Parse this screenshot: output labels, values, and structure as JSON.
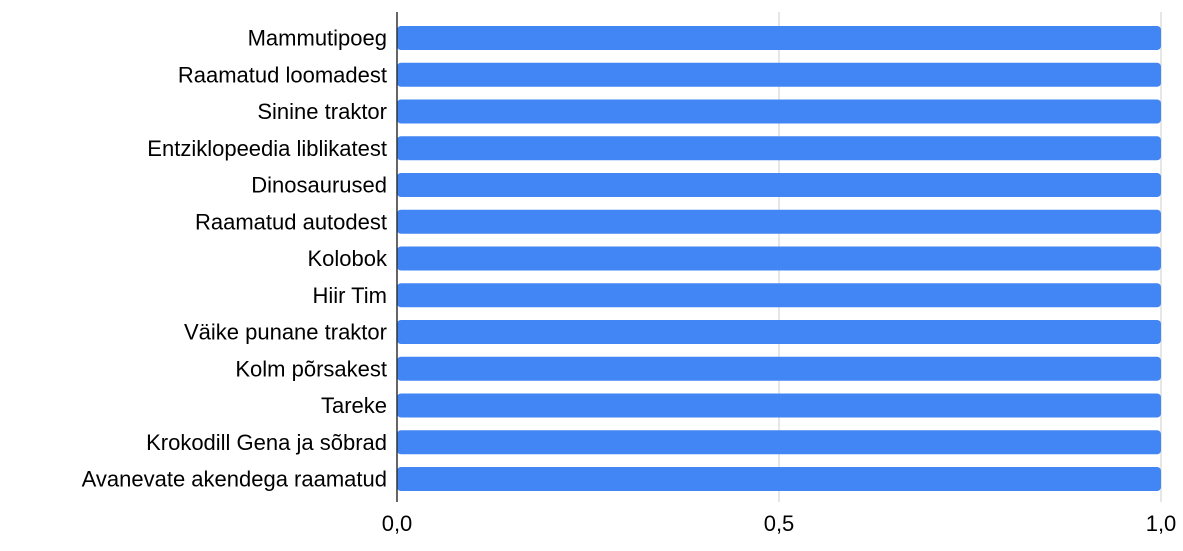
{
  "chart_data": {
    "type": "bar",
    "orientation": "horizontal",
    "categories": [
      "Mammutipoeg",
      "Raamatud loomadest",
      "Sinine traktor",
      "Entziklopeedia liblikatest",
      "Dinosaurused",
      "Raamatud autodest",
      "Kolobok",
      "Hiir Tim",
      "Väike punane traktor",
      "Kolm põrsakest",
      "Tareke",
      "Krokodill Gena ja sõbrad",
      "Avanevate akendega raamatud"
    ],
    "values": [
      1,
      1,
      1,
      1,
      1,
      1,
      1,
      1,
      1,
      1,
      1,
      1,
      1
    ],
    "xlim": [
      0,
      1
    ],
    "xticks": [
      0,
      0.5,
      1
    ],
    "xtick_labels": [
      "0,0",
      "0,5",
      "1,0"
    ],
    "grid": true,
    "legend": "none",
    "colors": {
      "bar": "#4285f4",
      "grid": "#cccccc",
      "axis": "#333333",
      "text": "#000000"
    }
  }
}
